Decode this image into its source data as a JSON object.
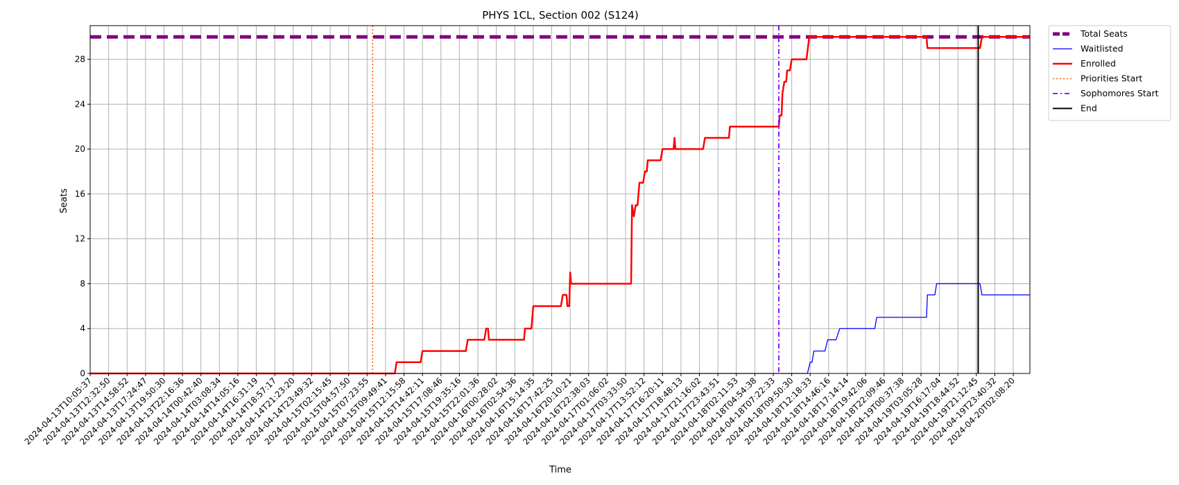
{
  "chart_data": {
    "type": "line",
    "title": "PHYS 1CL, Section 002 (S124)",
    "xlabel": "Time",
    "ylabel": "Seats",
    "ylim": [
      0,
      31.0
    ],
    "yticks": [
      0,
      4,
      8,
      12,
      16,
      20,
      24,
      28
    ],
    "grid": true,
    "legend_position": "outside-top-right",
    "x_categories": [
      "2024-04-13T10:05:37",
      "2024-04-13T12:32:50",
      "2024-04-13T14:58:52",
      "2024-04-13T17:24:47",
      "2024-04-13T19:50:30",
      "2024-04-13T22:16:36",
      "2024-04-14T00:42:40",
      "2024-04-14T03:08:34",
      "2024-04-14T14:05:16",
      "2024-04-14T16:31:19",
      "2024-04-14T18:57:17",
      "2024-04-14T21:23:20",
      "2024-04-14T23:49:32",
      "2024-04-15T02:15:45",
      "2024-04-15T04:57:50",
      "2024-04-15T07:23:55",
      "2024-04-15T09:49:41",
      "2024-04-15T12:15:58",
      "2024-04-15T14:42:11",
      "2024-04-15T17:08:46",
      "2024-04-15T19:35:16",
      "2024-04-15T22:01:36",
      "2024-04-16T00:28:02",
      "2024-04-16T02:54:36",
      "2024-04-16T15:14:35",
      "2024-04-16T17:42:25",
      "2024-04-16T20:10:21",
      "2024-04-16T22:38:03",
      "2024-04-17T01:06:02",
      "2024-04-17T03:33:50",
      "2024-04-17T13:52:12",
      "2024-04-17T16:20:11",
      "2024-04-17T18:48:13",
      "2024-04-17T21:16:02",
      "2024-04-17T23:43:51",
      "2024-04-18T02:11:53",
      "2024-04-18T04:54:38",
      "2024-04-18T07:22:33",
      "2024-04-18T09:50:30",
      "2024-04-18T12:18:33",
      "2024-04-18T14:46:16",
      "2024-04-18T17:14:14",
      "2024-04-18T19:42:06",
      "2024-04-18T22:09:46",
      "2024-04-19T00:37:38",
      "2024-04-19T03:05:28",
      "2024-04-19T16:17:04",
      "2024-04-19T18:44:52",
      "2024-04-19T21:12:45",
      "2024-04-19T23:40:32",
      "2024-04-20T02:08:20"
    ],
    "x_max_index": 50.9,
    "series": [
      {
        "name": "Total Seats",
        "color": "#800080",
        "style": "dashed-thick",
        "points": [
          [
            0,
            30
          ],
          [
            50.9,
            30
          ]
        ]
      },
      {
        "name": "Waitlisted",
        "color": "#0000ff",
        "style": "solid-thin",
        "points": [
          [
            0,
            0
          ],
          [
            38.85,
            0
          ],
          [
            39.0,
            1
          ],
          [
            39.1,
            1
          ],
          [
            39.2,
            2
          ],
          [
            39.8,
            2
          ],
          [
            39.95,
            3
          ],
          [
            40.4,
            3
          ],
          [
            40.6,
            4
          ],
          [
            42.5,
            4
          ],
          [
            42.6,
            5
          ],
          [
            45.3,
            5
          ],
          [
            45.35,
            7
          ],
          [
            45.75,
            7
          ],
          [
            45.85,
            8
          ],
          [
            48.2,
            8
          ],
          [
            48.3,
            7
          ],
          [
            50.9,
            7
          ]
        ]
      },
      {
        "name": "Enrolled",
        "color": "#ff0000",
        "style": "solid-thick",
        "points": [
          [
            0,
            0
          ],
          [
            16.5,
            0
          ],
          [
            16.6,
            1
          ],
          [
            17.9,
            1
          ],
          [
            18.0,
            2
          ],
          [
            20.35,
            2
          ],
          [
            20.45,
            3
          ],
          [
            21.35,
            3
          ],
          [
            21.45,
            4
          ],
          [
            21.55,
            4
          ],
          [
            21.6,
            3
          ],
          [
            23.5,
            3
          ],
          [
            23.55,
            4
          ],
          [
            23.9,
            4
          ],
          [
            24.0,
            6
          ],
          [
            25.5,
            6
          ],
          [
            25.6,
            7
          ],
          [
            25.8,
            7
          ],
          [
            25.85,
            6
          ],
          [
            25.95,
            6
          ],
          [
            26.0,
            9
          ],
          [
            26.05,
            8
          ],
          [
            29.3,
            8
          ],
          [
            29.35,
            15
          ],
          [
            29.45,
            14
          ],
          [
            29.55,
            15
          ],
          [
            29.65,
            15
          ],
          [
            29.75,
            17
          ],
          [
            29.95,
            17
          ],
          [
            30.05,
            18
          ],
          [
            30.15,
            18
          ],
          [
            30.2,
            19
          ],
          [
            30.9,
            19
          ],
          [
            31.0,
            20
          ],
          [
            31.6,
            20
          ],
          [
            31.65,
            21
          ],
          [
            31.7,
            20
          ],
          [
            33.2,
            20
          ],
          [
            33.3,
            21
          ],
          [
            34.6,
            21
          ],
          [
            34.65,
            22
          ],
          [
            37.3,
            22
          ],
          [
            37.35,
            23
          ],
          [
            37.45,
            23
          ],
          [
            37.5,
            25
          ],
          [
            37.6,
            26
          ],
          [
            37.7,
            26
          ],
          [
            37.75,
            27
          ],
          [
            37.9,
            27
          ],
          [
            38.0,
            28
          ],
          [
            38.8,
            28
          ],
          [
            38.95,
            30
          ],
          [
            45.3,
            30
          ],
          [
            45.35,
            29
          ],
          [
            48.2,
            29
          ],
          [
            48.3,
            30
          ],
          [
            50.9,
            30
          ]
        ]
      },
      {
        "name": "Priorities Start",
        "color": "#ff5500",
        "style": "dotted",
        "vertical_at": 15.3
      },
      {
        "name": "Sophomores Start",
        "color": "#7b00ff",
        "style": "dashdot",
        "vertical_at": 37.3
      },
      {
        "name": "End",
        "color": "#000000",
        "style": "solid",
        "vertical_at": 48.1
      }
    ]
  }
}
